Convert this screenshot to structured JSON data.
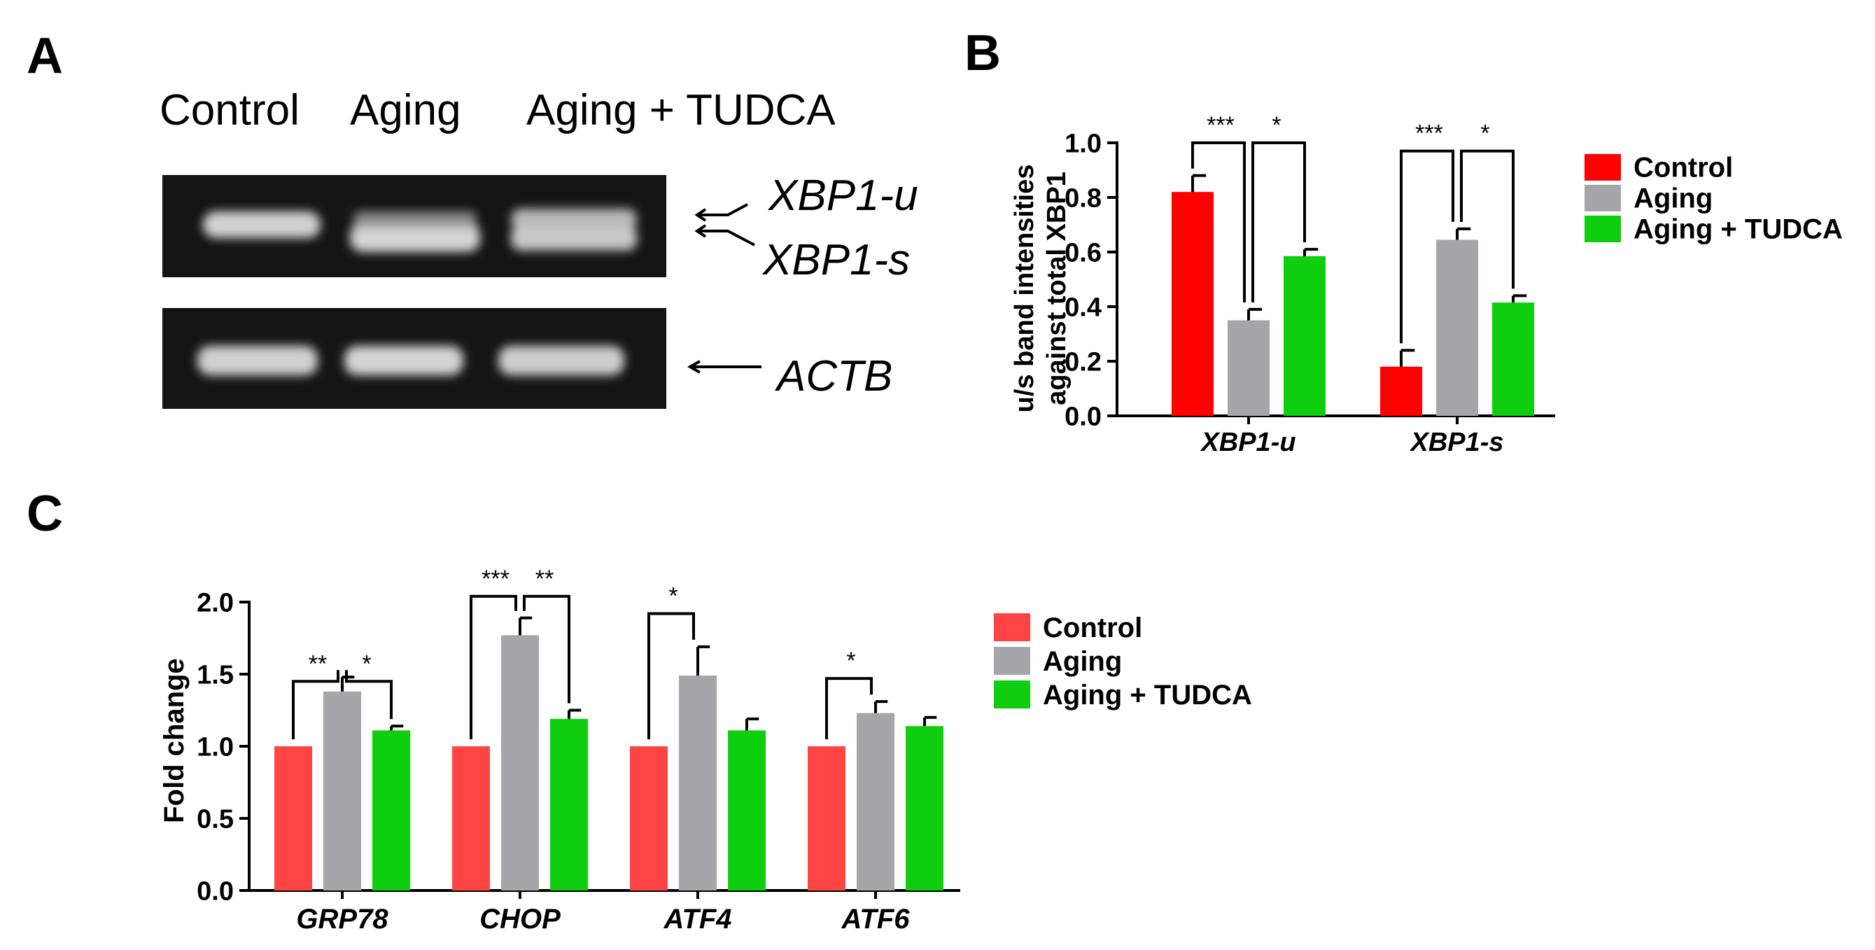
{
  "colors": {
    "control_b": "#ff0000",
    "control_c": "#ff4444",
    "aging": "#a6a6aa",
    "tudca": "#0fcd0f",
    "gel_band": "#d8d8d8",
    "gel_bg": "#141414"
  },
  "panel_a": {
    "letter": "A",
    "lanes": [
      "Control",
      "Aging",
      "Aging + TUDCA"
    ],
    "band_labels": [
      "XBP1-u",
      "XBP1-s",
      "ACTB"
    ]
  },
  "chart_data": [
    {
      "panel": "B",
      "type": "bar",
      "ylabel_lines": [
        "u/s band intensities",
        "against total XBP1"
      ],
      "ylim": [
        0,
        1.0
      ],
      "yticks": [
        "0.0",
        "0.2",
        "0.4",
        "0.6",
        "0.8",
        "1.0"
      ],
      "categories": [
        "XBP1-u",
        "XBP1-s"
      ],
      "series": [
        {
          "name": "Control",
          "color_key": "control_b",
          "values": [
            0.82,
            0.18
          ],
          "errors": [
            0.06,
            0.06
          ]
        },
        {
          "name": "Aging",
          "color_key": "aging",
          "values": [
            0.35,
            0.645
          ],
          "errors": [
            0.04,
            0.04
          ]
        },
        {
          "name": "Aging + TUDCA",
          "color_key": "tudca",
          "values": [
            0.585,
            0.415
          ],
          "errors": [
            0.025,
            0.025
          ]
        }
      ],
      "significance": [
        {
          "category": 0,
          "from": 0,
          "to": 1,
          "label": "***",
          "level": 1.0
        },
        {
          "category": 0,
          "from": 1,
          "to": 2,
          "label": "*",
          "level": 1.0
        },
        {
          "category": 1,
          "from": 0,
          "to": 1,
          "label": "***",
          "level": 0.97
        },
        {
          "category": 1,
          "from": 1,
          "to": 2,
          "label": "*",
          "level": 0.97
        }
      ],
      "legend": "right"
    },
    {
      "panel": "C",
      "type": "bar",
      "ylabel": "Fold change",
      "ylim": [
        0,
        2.0
      ],
      "yticks": [
        "0.0",
        "0.5",
        "1.0",
        "1.5",
        "2.0"
      ],
      "categories": [
        "GRP78",
        "CHOP",
        "ATF4",
        "ATF6"
      ],
      "series": [
        {
          "name": "Control",
          "color_key": "control_c",
          "values": [
            1.0,
            1.0,
            1.0,
            1.0
          ],
          "errors": [
            0,
            0,
            0,
            0
          ]
        },
        {
          "name": "Aging",
          "color_key": "aging",
          "values": [
            1.38,
            1.77,
            1.49,
            1.23
          ],
          "errors": [
            0.1,
            0.12,
            0.2,
            0.08
          ]
        },
        {
          "name": "Aging + TUDCA",
          "color_key": "tudca",
          "values": [
            1.11,
            1.19,
            1.11,
            1.14
          ],
          "errors": [
            0.03,
            0.06,
            0.08,
            0.06
          ]
        }
      ],
      "significance": [
        {
          "category": 0,
          "from": 0,
          "to": 1,
          "label": "**",
          "level": 1.45
        },
        {
          "category": 0,
          "from": 1,
          "to": 2,
          "label": "*",
          "level": 1.45
        },
        {
          "category": 1,
          "from": 0,
          "to": 1,
          "label": "***",
          "level": 2.04
        },
        {
          "category": 1,
          "from": 1,
          "to": 2,
          "label": "**",
          "level": 2.04
        },
        {
          "category": 2,
          "from": 0,
          "to": 1,
          "label": "*",
          "level": 1.92
        },
        {
          "category": 3,
          "from": 0,
          "to": 1,
          "label": "*",
          "level": 1.47
        }
      ],
      "legend": "right"
    }
  ]
}
